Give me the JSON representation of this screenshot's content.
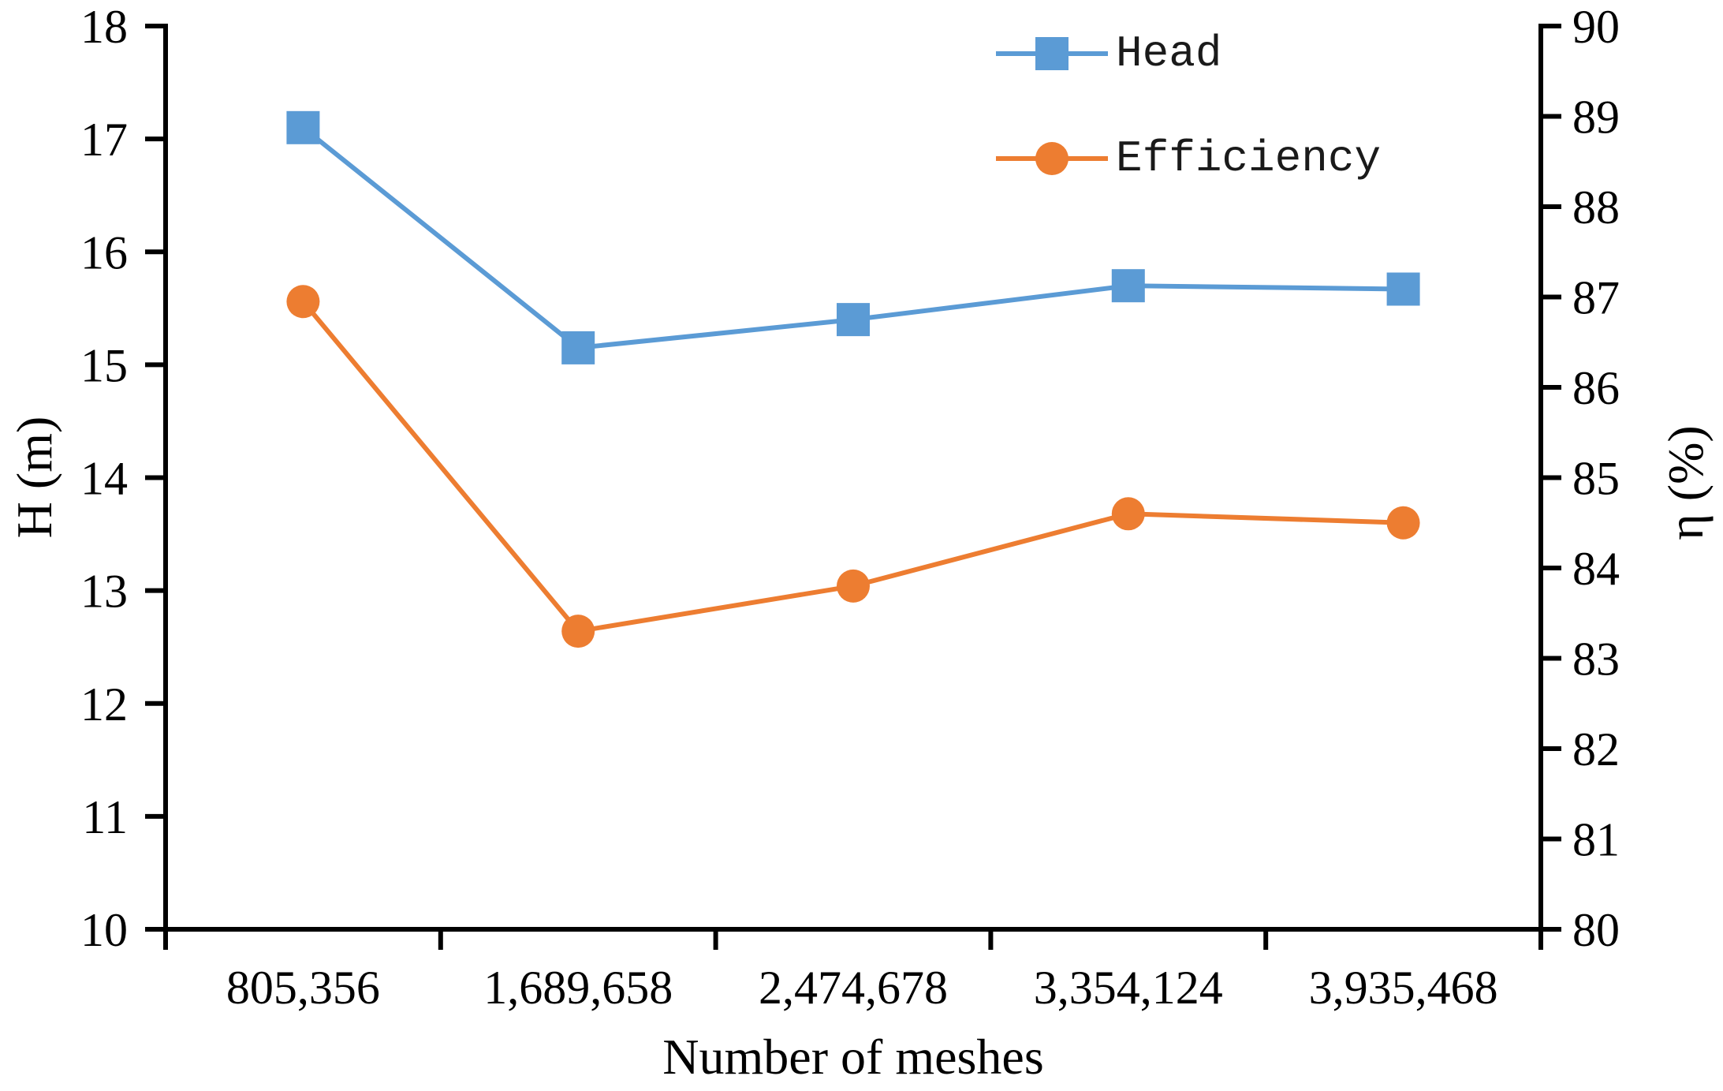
{
  "figure": {
    "axes": {
      "x_title": "Number of meshes",
      "y_left_title": "H (m)",
      "y_right_title": "η (%)"
    },
    "legend": {
      "items": [
        {
          "label": "Head"
        },
        {
          "label": "Efficiency"
        }
      ]
    }
  },
  "chart_data": {
    "type": "line",
    "title": "",
    "categories": [
      "805,356",
      "1,689,658",
      "2,474,678",
      "3,354,124",
      "3,935,468"
    ],
    "series": [
      {
        "name": "Head",
        "axis": "left",
        "marker": "square",
        "color": "#5B9BD5",
        "values": [
          17.1,
          15.15,
          15.4,
          15.7,
          15.67
        ]
      },
      {
        "name": "Efficiency",
        "axis": "right",
        "marker": "circle",
        "color": "#ED7D31",
        "values": [
          86.95,
          83.3,
          83.8,
          84.6,
          84.5
        ]
      }
    ],
    "xlabel": "Number of meshes",
    "ylabel_left": "H (m)",
    "ylabel_right": "η (%)",
    "y_left_axis": {
      "min": 10,
      "max": 18,
      "step": 1
    },
    "y_right_axis": {
      "min": 80,
      "max": 90,
      "step": 1
    },
    "x_tick_style": "boundary-ticks-between-categories",
    "legend_position": "top-right-inside",
    "grid": false,
    "axis_color": "#000000",
    "tick_label_color": "#000000"
  }
}
